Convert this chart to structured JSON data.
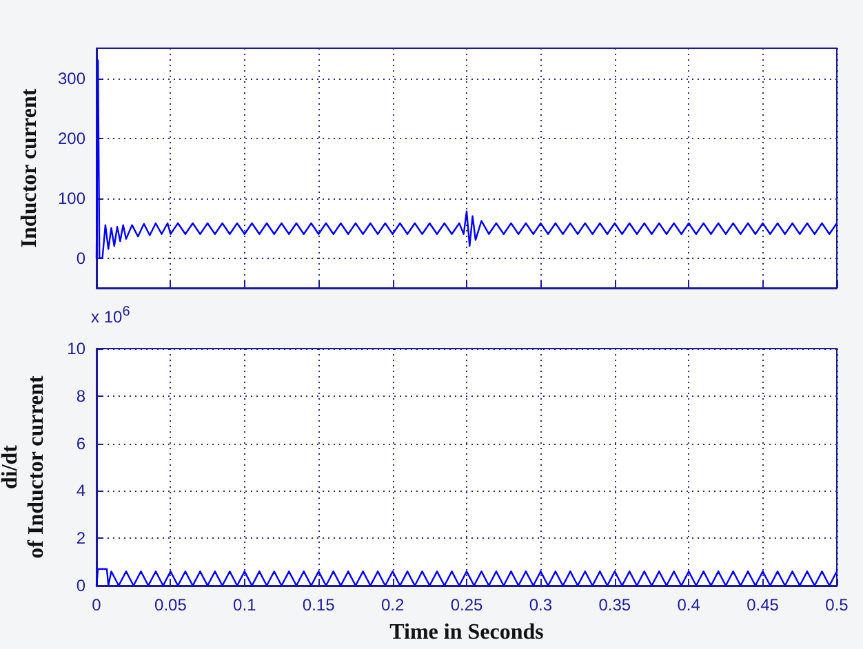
{
  "chart_data": [
    {
      "type": "line",
      "ylabel": "Inductor current",
      "xlim": [
        0,
        0.5
      ],
      "xticks": [
        0,
        0.05,
        0.1,
        0.15,
        0.2,
        0.25,
        0.3,
        0.35,
        0.4,
        0.45,
        0.5
      ],
      "ylim": [
        -50,
        350
      ],
      "yticks": [
        0,
        100,
        200,
        300
      ],
      "tick_labels": "y",
      "grid": true,
      "marker": "none",
      "line_style": "solid",
      "series": [
        {
          "color": "#0000ff",
          "x": [
            0,
            0.001,
            0.002,
            0.004,
            0.006,
            0.008,
            0.01,
            0.012,
            0.014,
            0.016,
            0.018,
            0.02,
            0.024,
            0.028,
            0.032,
            0.036,
            0.04,
            0.044,
            0.048,
            0.05,
            0.055,
            0.06,
            0.065,
            0.07,
            0.075,
            0.08,
            0.085,
            0.09,
            0.095,
            0.1,
            0.105,
            0.11,
            0.115,
            0.12,
            0.125,
            0.13,
            0.135,
            0.14,
            0.145,
            0.15,
            0.155,
            0.16,
            0.165,
            0.17,
            0.175,
            0.18,
            0.185,
            0.19,
            0.195,
            0.2,
            0.205,
            0.21,
            0.215,
            0.22,
            0.225,
            0.23,
            0.235,
            0.24,
            0.245,
            0.248,
            0.25,
            0.252,
            0.254,
            0.256,
            0.26,
            0.265,
            0.27,
            0.275,
            0.28,
            0.285,
            0.29,
            0.295,
            0.3,
            0.305,
            0.31,
            0.315,
            0.32,
            0.325,
            0.33,
            0.335,
            0.34,
            0.345,
            0.35,
            0.355,
            0.36,
            0.365,
            0.37,
            0.375,
            0.38,
            0.385,
            0.39,
            0.395,
            0.4,
            0.405,
            0.41,
            0.415,
            0.42,
            0.425,
            0.43,
            0.435,
            0.44,
            0.445,
            0.45,
            0.455,
            0.46,
            0.465,
            0.47,
            0.475,
            0.48,
            0.485,
            0.49,
            0.495,
            0.5
          ],
          "values": [
            0,
            330,
            0,
            0,
            55,
            15,
            50,
            20,
            52,
            28,
            55,
            32,
            55,
            36,
            57,
            38,
            58,
            40,
            58,
            40,
            58,
            40,
            58,
            40,
            58,
            40,
            58,
            40,
            58,
            40,
            58,
            40,
            58,
            40,
            58,
            40,
            58,
            40,
            58,
            40,
            58,
            40,
            58,
            40,
            58,
            40,
            58,
            40,
            58,
            40,
            58,
            40,
            58,
            40,
            58,
            40,
            58,
            40,
            58,
            40,
            78,
            20,
            70,
            30,
            62,
            40,
            58,
            40,
            58,
            40,
            58,
            40,
            58,
            40,
            58,
            40,
            58,
            40,
            58,
            40,
            58,
            40,
            58,
            40,
            58,
            40,
            58,
            40,
            58,
            40,
            58,
            40,
            58,
            40,
            58,
            40,
            58,
            40,
            58,
            40,
            58,
            40,
            58,
            40,
            58,
            40,
            58,
            40,
            58,
            40,
            58,
            40,
            58
          ]
        }
      ]
    },
    {
      "type": "line",
      "xlabel": "Time in Seconds",
      "ylabel": "di/dt\nof Inductor current",
      "annotations": [
        "x 10$^{6}$"
      ],
      "xlim": [
        0,
        0.5
      ],
      "xticks": [
        0,
        0.05,
        0.1,
        0.15,
        0.2,
        0.25,
        0.3,
        0.35,
        0.4,
        0.45,
        0.5
      ],
      "ylim": [
        0,
        10
      ],
      "yticks": [
        0,
        2,
        4,
        6,
        8,
        10
      ],
      "grid": true,
      "marker": "none",
      "line_style": "solid",
      "series": [
        {
          "color": "#0000ff",
          "x": [
            0,
            0.001,
            0.007,
            0.008,
            0.01,
            0.015,
            0.02,
            0.025,
            0.03,
            0.035,
            0.04,
            0.045,
            0.05,
            0.055,
            0.06,
            0.065,
            0.07,
            0.075,
            0.08,
            0.085,
            0.09,
            0.095,
            0.1,
            0.105,
            0.11,
            0.115,
            0.12,
            0.125,
            0.13,
            0.135,
            0.14,
            0.145,
            0.15,
            0.155,
            0.16,
            0.165,
            0.17,
            0.175,
            0.18,
            0.185,
            0.19,
            0.195,
            0.2,
            0.205,
            0.21,
            0.215,
            0.22,
            0.225,
            0.23,
            0.235,
            0.24,
            0.245,
            0.25,
            0.255,
            0.26,
            0.265,
            0.27,
            0.275,
            0.28,
            0.285,
            0.29,
            0.295,
            0.3,
            0.305,
            0.31,
            0.315,
            0.32,
            0.325,
            0.33,
            0.335,
            0.34,
            0.345,
            0.35,
            0.355,
            0.36,
            0.365,
            0.37,
            0.375,
            0.38,
            0.385,
            0.39,
            0.395,
            0.4,
            0.405,
            0.41,
            0.415,
            0.42,
            0.425,
            0.43,
            0.435,
            0.44,
            0.445,
            0.45,
            0.455,
            0.46,
            0.465,
            0.47,
            0.475,
            0.48,
            0.485,
            0.49,
            0.495,
            0.5
          ],
          "values": [
            0,
            0.7,
            0.7,
            0,
            0.6,
            0,
            0.6,
            0,
            0.6,
            0,
            0.6,
            0,
            0.6,
            0,
            0.6,
            0,
            0.6,
            0,
            0.6,
            0,
            0.6,
            0,
            0.6,
            0,
            0.6,
            0,
            0.6,
            0,
            0.6,
            0,
            0.6,
            0,
            0.6,
            0,
            0.6,
            0,
            0.6,
            0,
            0.6,
            0,
            0.6,
            0,
            0.6,
            0,
            0.6,
            0,
            0.6,
            0,
            0.6,
            0,
            0.6,
            0,
            0.6,
            0,
            0.6,
            0,
            0.6,
            0,
            0.6,
            0,
            0.6,
            0,
            0.6,
            0,
            0.6,
            0,
            0.6,
            0,
            0.6,
            0,
            0.6,
            0,
            0.6,
            0,
            0.6,
            0,
            0.6,
            0,
            0.6,
            0,
            0.6,
            0,
            0.6,
            0,
            0.6,
            0,
            0.6,
            0,
            0.6,
            0,
            0.6,
            0,
            0.6,
            0,
            0.6,
            0,
            0.6,
            0,
            0.6,
            0,
            0.6,
            0,
            0.6
          ]
        }
      ]
    }
  ]
}
